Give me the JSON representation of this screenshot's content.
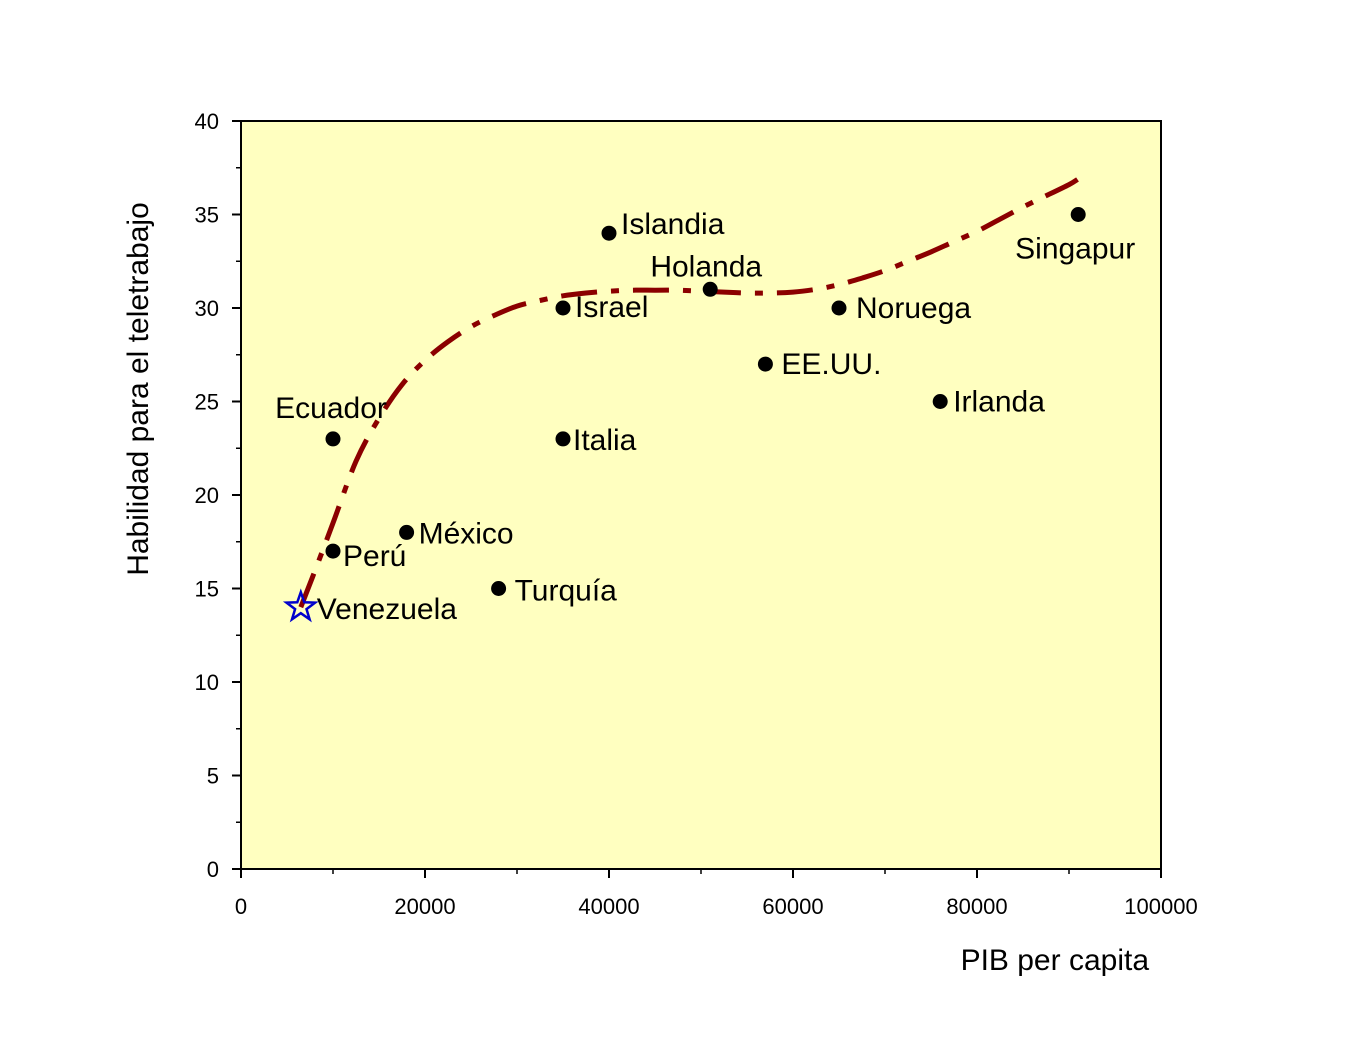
{
  "chart_data": {
    "type": "scatter",
    "xlabel": "PIB per capita",
    "ylabel": "Habilidad para el teletrabajo",
    "xlim": [
      0,
      100000
    ],
    "ylim": [
      0,
      40
    ],
    "x_ticks": [
      0,
      20000,
      40000,
      60000,
      80000,
      100000
    ],
    "y_ticks": [
      0,
      5,
      10,
      15,
      20,
      25,
      30,
      35,
      40
    ],
    "grid": false,
    "background_color": "#FFFFC0",
    "points": [
      {
        "label": "Venezuela",
        "x": 6500,
        "y": 14,
        "marker": "star",
        "color": "#0000CC"
      },
      {
        "label": "Perú",
        "x": 10000,
        "y": 17,
        "marker": "circle",
        "color": "#000000"
      },
      {
        "label": "Ecuador",
        "x": 10000,
        "y": 23,
        "marker": "circle",
        "color": "#000000"
      },
      {
        "label": "México",
        "x": 18000,
        "y": 18,
        "marker": "circle",
        "color": "#000000"
      },
      {
        "label": "Turquía",
        "x": 28000,
        "y": 15,
        "marker": "circle",
        "color": "#000000"
      },
      {
        "label": "Italia",
        "x": 35000,
        "y": 23,
        "marker": "circle",
        "color": "#000000"
      },
      {
        "label": "Israel",
        "x": 35000,
        "y": 30,
        "marker": "circle",
        "color": "#000000"
      },
      {
        "label": "Islandia",
        "x": 40000,
        "y": 34,
        "marker": "circle",
        "color": "#000000"
      },
      {
        "label": "Holanda",
        "x": 51000,
        "y": 31,
        "marker": "circle",
        "color": "#000000"
      },
      {
        "label": "EE.UU.",
        "x": 57000,
        "y": 27,
        "marker": "circle",
        "color": "#000000"
      },
      {
        "label": "Noruega",
        "x": 65000,
        "y": 30,
        "marker": "circle",
        "color": "#000000"
      },
      {
        "label": "Irlanda",
        "x": 76000,
        "y": 25,
        "marker": "circle",
        "color": "#000000"
      },
      {
        "label": "Singapur",
        "x": 91000,
        "y": 35,
        "marker": "circle",
        "color": "#000000"
      }
    ],
    "trend_line": {
      "style": "dash-dot",
      "color": "#8B0000",
      "x": [
        6500,
        8000,
        10000,
        12500,
        15000,
        17500,
        20000,
        22500,
        25000,
        27500,
        30000,
        32500,
        35000,
        37500,
        40000,
        42500,
        45000,
        47500,
        50000,
        52500,
        55000,
        57500,
        60000,
        62500,
        65000,
        67500,
        70000,
        72500,
        75000,
        77500,
        80000,
        82500,
        85000,
        87500,
        90000,
        91000
      ],
      "y": [
        14.0,
        15.9,
        18.5,
        21.8,
        24.1,
        25.9,
        27.2,
        28.2,
        29.0,
        29.6,
        30.1,
        30.4,
        30.65,
        30.8,
        30.9,
        30.95,
        30.95,
        30.95,
        30.9,
        30.85,
        30.8,
        30.8,
        30.85,
        31.0,
        31.25,
        31.6,
        32.0,
        32.5,
        33.0,
        33.55,
        34.1,
        34.75,
        35.4,
        36.0,
        36.6,
        36.9
      ]
    }
  }
}
